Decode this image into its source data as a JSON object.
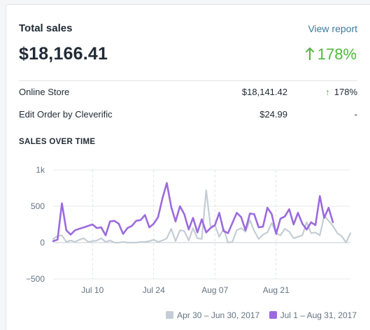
{
  "card": {
    "title": "Total sales",
    "view_report_label": "View report",
    "total": "$18,166.41",
    "growth": "178%",
    "accent_color": "#50b83c",
    "link_color": "#3d7a9e"
  },
  "breakdown": [
    {
      "name": "Online Store",
      "amount": "$18,141.42",
      "change": "178%",
      "trend": "up"
    },
    {
      "name": "Edit Order by Cleverific",
      "amount": "$24.99",
      "change": "-",
      "trend": "none"
    }
  ],
  "chart": {
    "section_title": "SALES OVER TIME"
  },
  "chart_data": {
    "type": "line",
    "y_ticks": [
      "1k",
      "500",
      "0",
      "−500"
    ],
    "y_tick_values": [
      1000,
      500,
      0,
      -500
    ],
    "ylim": [
      -500,
      1000
    ],
    "x_tick_labels": [
      "Jul 10",
      "Jul 24",
      "Aug 07",
      "Aug 21"
    ],
    "x_tick_days": [
      9,
      23,
      37,
      51
    ],
    "grid": true,
    "legend_position": "bottom-right",
    "series": [
      {
        "name": "Apr 30 – Jun 30, 2017",
        "color": "#c4cdd5",
        "values": [
          50,
          90,
          100,
          10,
          30,
          10,
          40,
          60,
          10,
          20,
          30,
          60,
          10,
          30,
          0,
          0,
          10,
          0,
          0,
          0,
          10,
          10,
          20,
          40,
          10,
          30,
          60,
          190,
          20,
          170,
          160,
          30,
          200,
          60,
          50,
          720,
          220,
          240,
          80,
          190,
          0,
          10,
          170,
          200,
          150,
          310,
          160,
          50,
          110,
          140,
          270,
          130,
          100,
          190,
          150,
          60,
          80,
          100,
          280,
          130,
          140,
          100,
          370,
          300,
          230,
          130,
          90,
          0,
          130
        ]
      },
      {
        "name": "Jul 1 – Aug 31, 2017",
        "color": "#9c6ade",
        "values": [
          20,
          40,
          540,
          170,
          110,
          170,
          190,
          210,
          230,
          250,
          200,
          210,
          100,
          290,
          300,
          260,
          120,
          200,
          230,
          300,
          310,
          380,
          210,
          260,
          350,
          610,
          820,
          490,
          290,
          500,
          390,
          180,
          340,
          140,
          320,
          140,
          200,
          240,
          410,
          160,
          130,
          270,
          410,
          350,
          170,
          400,
          390,
          210,
          220,
          480,
          390,
          120,
          330,
          360,
          460,
          250,
          410,
          260,
          180,
          280,
          240,
          640,
          340,
          480,
          280
        ]
      }
    ]
  }
}
